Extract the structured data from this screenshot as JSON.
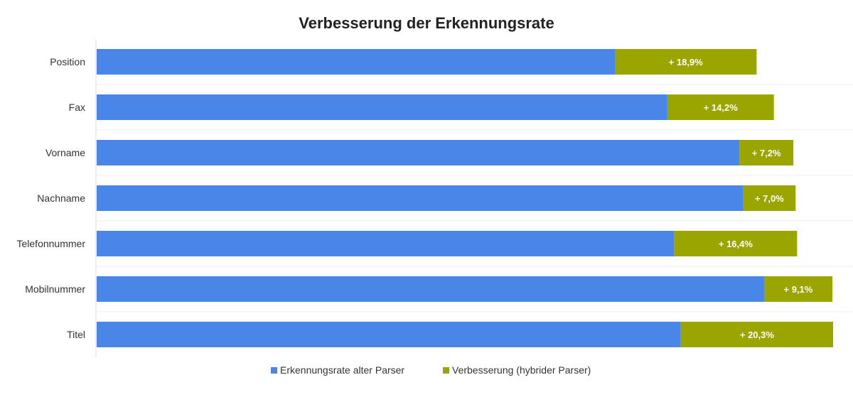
{
  "chart_data": {
    "type": "bar",
    "orientation": "horizontal",
    "stacked": true,
    "title": "Verbesserung der Erkennungsrate",
    "categories": [
      "Position",
      "Fax",
      "Vorname",
      "Nachname",
      "Telefonnummer",
      "Mobilnummer",
      "Titel"
    ],
    "series": [
      {
        "name": "Erkennungsrate alter Parser",
        "color": "#4a86e8",
        "values": [
          69.1,
          76.1,
          85.7,
          86.2,
          77.0,
          89.0,
          77.9
        ]
      },
      {
        "name": "Verbesserung (hybrider Parser)",
        "color": "#9aa500",
        "values": [
          18.9,
          14.2,
          7.2,
          7.0,
          16.4,
          9.1,
          20.3
        ]
      }
    ],
    "data_labels": [
      "+ 18,9%",
      "+ 14,2%",
      "+ 7,2%",
      "+ 7,0%",
      "+ 16,4%",
      "+ 9,1%",
      "+ 20,3%"
    ],
    "xlim": [
      0,
      100
    ],
    "grid": "horizontal separators",
    "legend": "bottom"
  }
}
